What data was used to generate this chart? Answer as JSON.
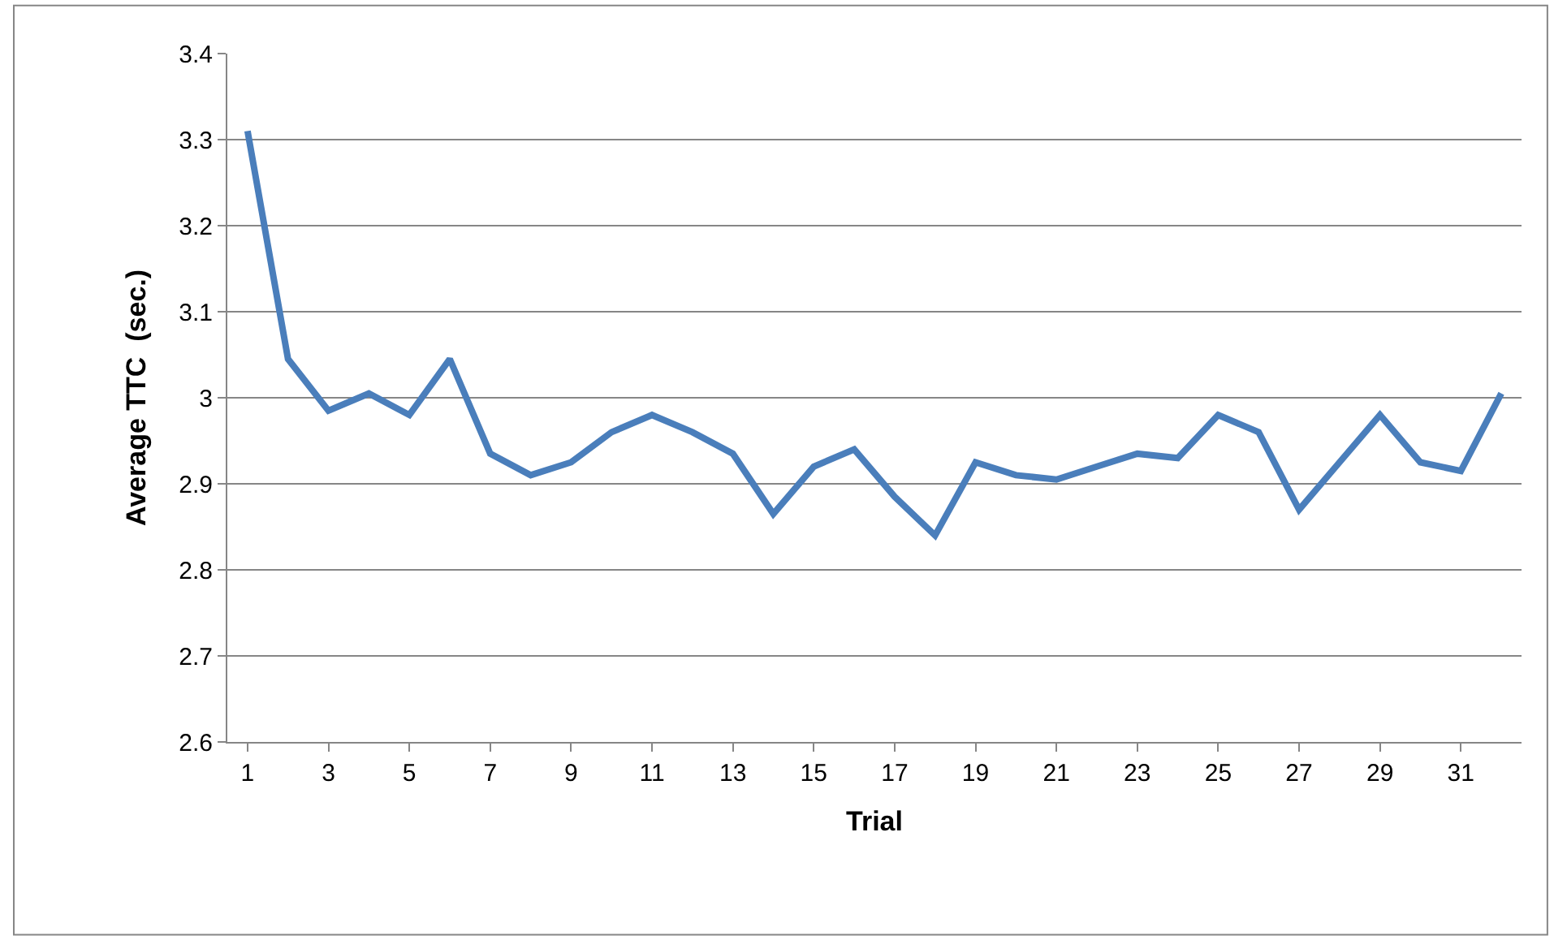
{
  "chart_data": {
    "type": "line",
    "xlabel": "Trial",
    "ylabel": "Average TTC  (sec.)",
    "x": [
      1,
      2,
      3,
      4,
      5,
      6,
      7,
      8,
      9,
      10,
      11,
      12,
      13,
      14,
      15,
      16,
      17,
      18,
      19,
      20,
      21,
      22,
      23,
      24,
      25,
      26,
      27,
      28,
      29,
      30,
      31,
      32
    ],
    "series": [
      {
        "color": "#4a7ebb",
        "values": [
          3.31,
          3.045,
          2.985,
          3.005,
          2.98,
          3.045,
          2.935,
          2.91,
          2.925,
          2.96,
          2.98,
          2.96,
          2.935,
          2.865,
          2.92,
          2.94,
          2.885,
          2.84,
          2.925,
          2.91,
          2.905,
          2.92,
          2.935,
          2.93,
          2.98,
          2.96,
          2.87,
          2.925,
          2.98,
          2.925,
          2.915,
          3.005
        ]
      }
    ],
    "xlim": [
      0.5,
      32.5
    ],
    "xticks": [
      1,
      3,
      5,
      7,
      9,
      11,
      13,
      15,
      17,
      19,
      21,
      23,
      25,
      27,
      29,
      31
    ],
    "ylim": [
      2.6,
      3.4
    ],
    "yticks": [
      2.6,
      2.7,
      2.8,
      2.9,
      3,
      3.1,
      3.2,
      3.3,
      3.4
    ],
    "grid": "y",
    "marker": "none",
    "line_style": "solid"
  }
}
